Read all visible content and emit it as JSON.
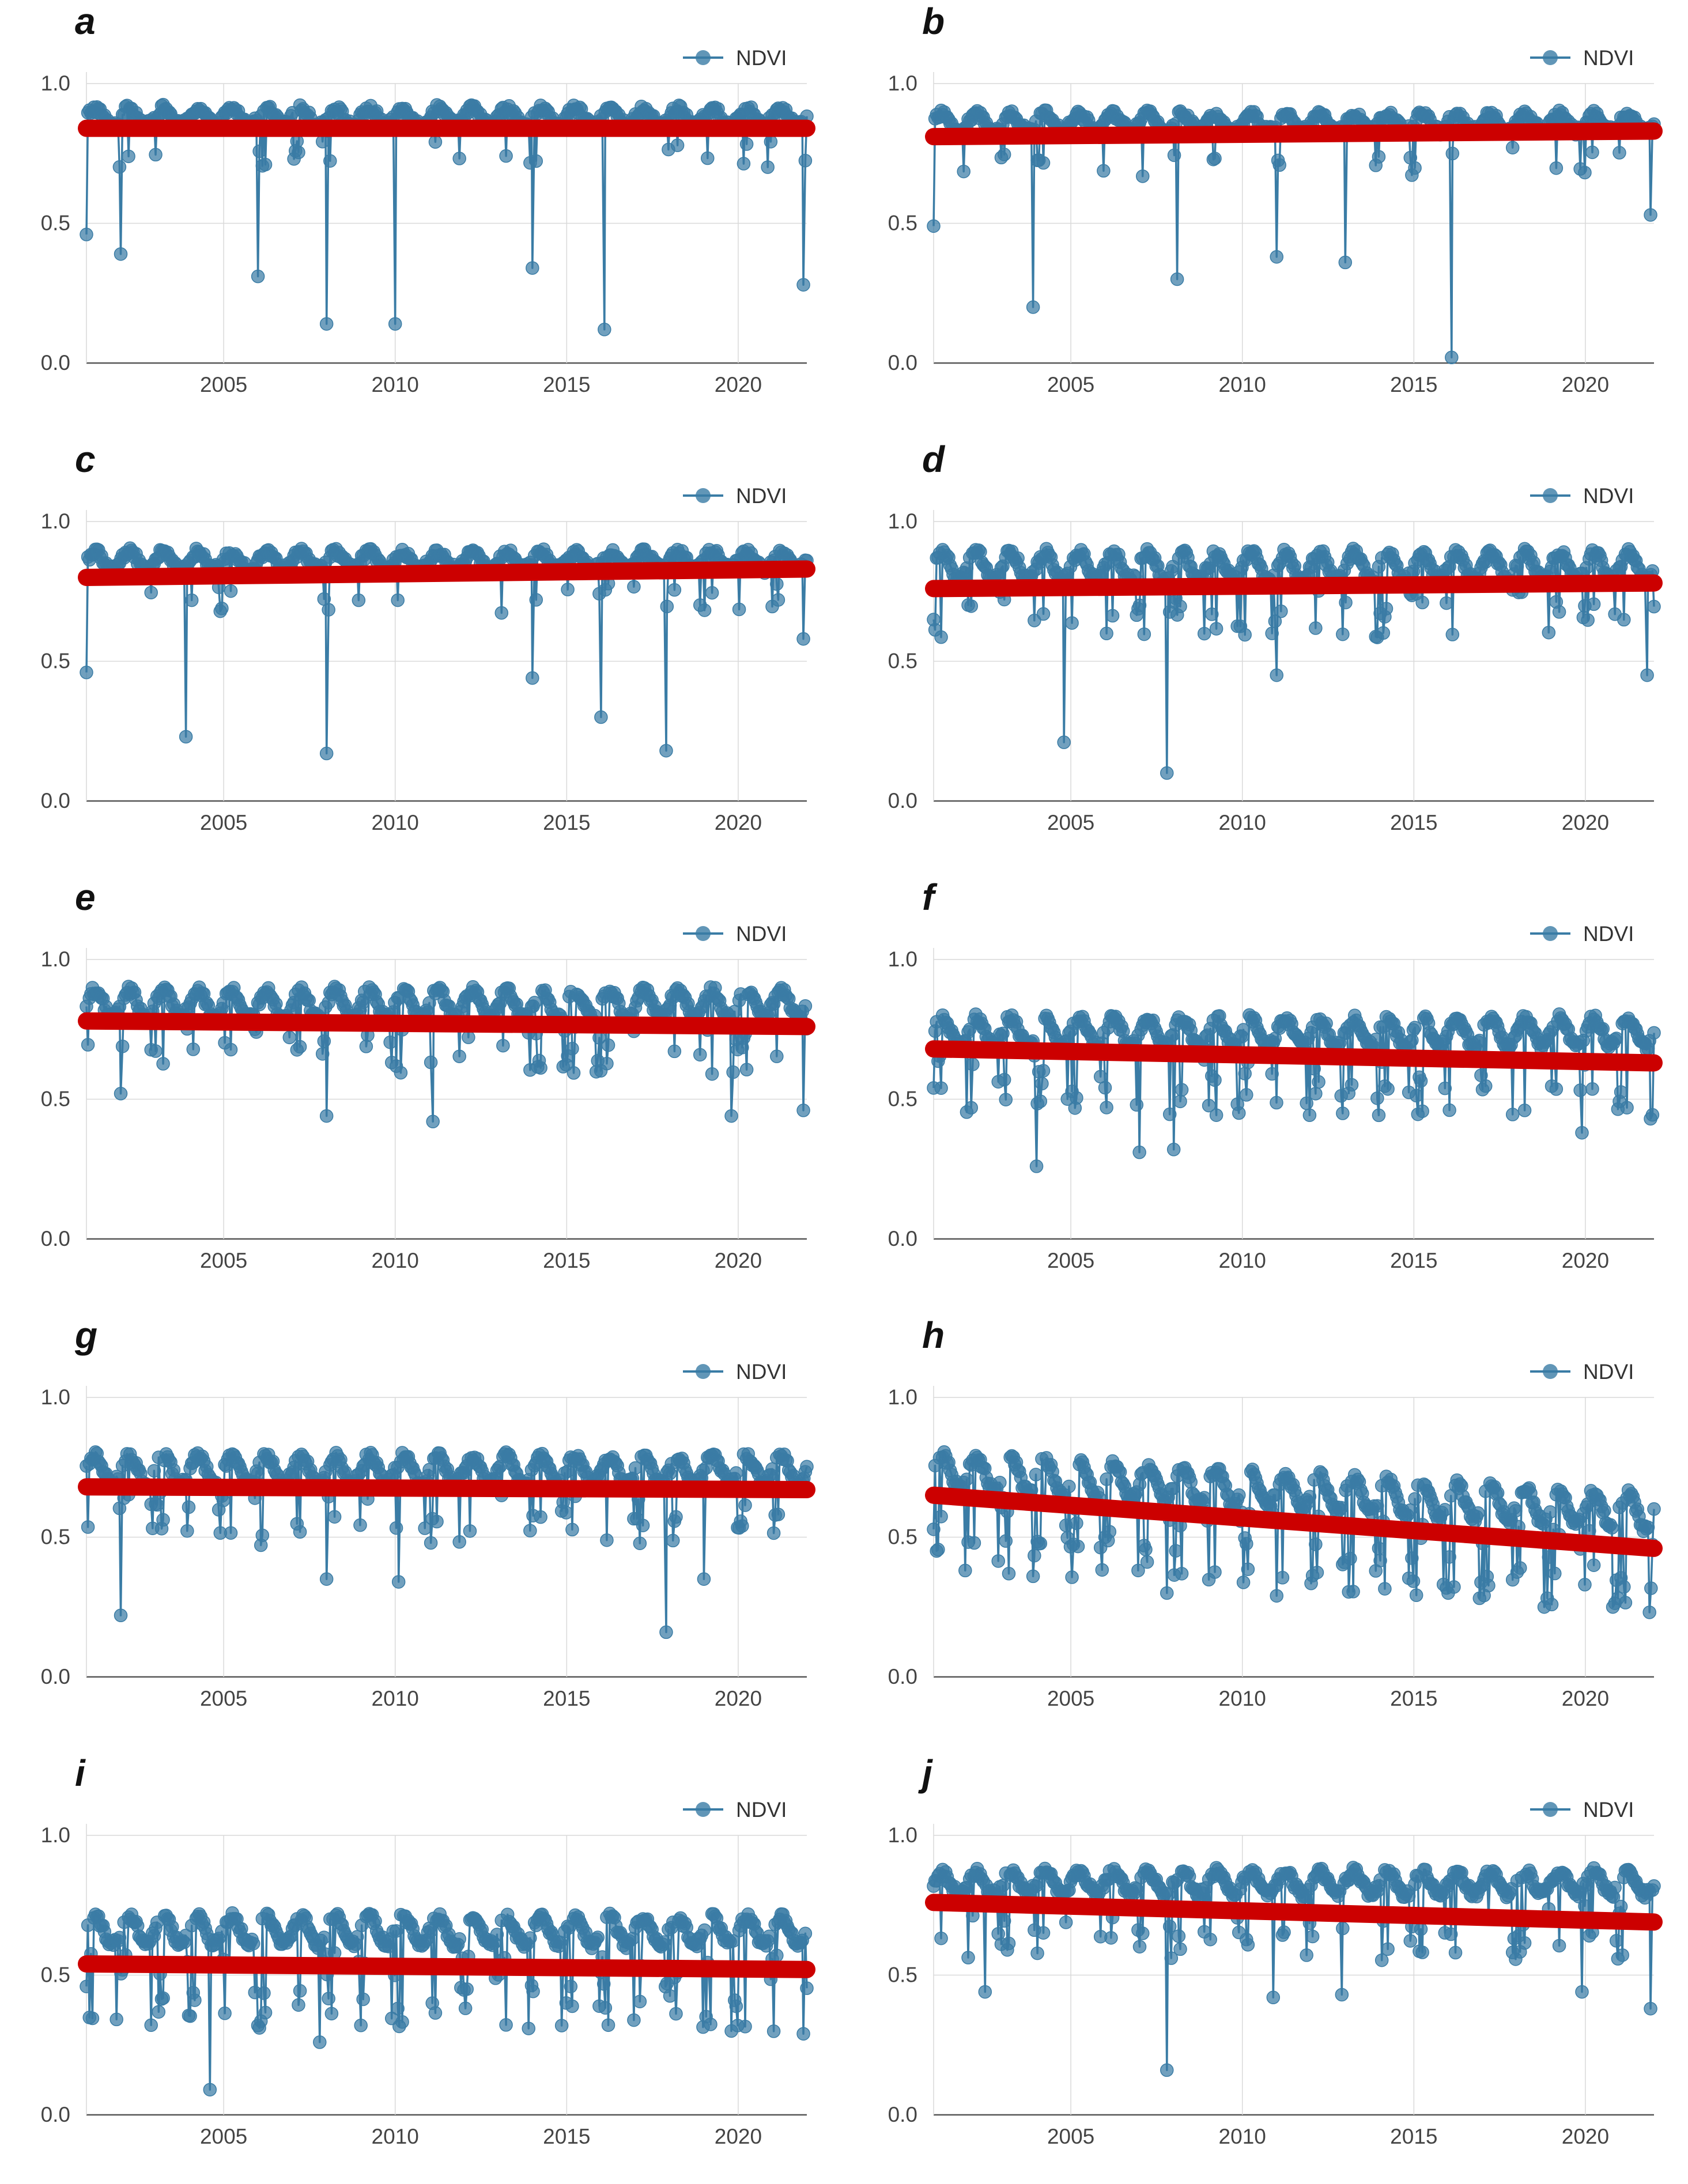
{
  "figure": {
    "legend_label": "NDVI",
    "colors": {
      "series": "#3a7ca5",
      "trend": "#cc0000",
      "grid": "#d9d9d9",
      "axis": "#555555"
    }
  },
  "chart_data": [
    {
      "panel": "a",
      "type": "line",
      "legend": "NDVI",
      "title": "",
      "xlabel": "",
      "ylabel": "",
      "xlim": [
        2001,
        2022
      ],
      "ylim": [
        0,
        1
      ],
      "x_ticks": [
        2005,
        2010,
        2015,
        2020
      ],
      "y_ticks": [
        "0.0",
        "0.5",
        "1.0"
      ],
      "series_profile": {
        "base": 0.88,
        "amplitude": 0.03,
        "dip_rate": 0.12,
        "min_spikes": [
          [
            2001.0,
            0.46
          ],
          [
            2002.0,
            0.39
          ],
          [
            2006.0,
            0.31
          ],
          [
            2008.0,
            0.14
          ],
          [
            2010.0,
            0.14
          ],
          [
            2014.0,
            0.34
          ],
          [
            2016.1,
            0.12
          ],
          [
            2021.9,
            0.28
          ]
        ]
      },
      "trend": {
        "x": [
          2001,
          2022
        ],
        "y": [
          0.84,
          0.84
        ]
      }
    },
    {
      "panel": "b",
      "type": "line",
      "legend": "NDVI",
      "title": "",
      "xlabel": "",
      "ylabel": "",
      "xlim": [
        2001,
        2022
      ],
      "ylim": [
        0,
        1
      ],
      "x_ticks": [
        2005,
        2010,
        2015,
        2020
      ],
      "y_ticks": [
        "0.0",
        "0.5",
        "1.0"
      ],
      "series_profile": {
        "base": 0.86,
        "amplitude": 0.03,
        "dip_rate": 0.15,
        "min_spikes": [
          [
            2001.0,
            0.49
          ],
          [
            2003.9,
            0.2
          ],
          [
            2008.1,
            0.3
          ],
          [
            2011.0,
            0.38
          ],
          [
            2013.0,
            0.36
          ],
          [
            2016.1,
            0.02
          ],
          [
            2021.9,
            0.53
          ]
        ]
      },
      "trend": {
        "x": [
          2001,
          2022
        ],
        "y": [
          0.81,
          0.83
        ]
      }
    },
    {
      "panel": "c",
      "type": "line",
      "legend": "NDVI",
      "title": "",
      "xlabel": "",
      "ylabel": "",
      "xlim": [
        2001,
        2022
      ],
      "ylim": [
        0,
        1
      ],
      "x_ticks": [
        2005,
        2010,
        2015,
        2020
      ],
      "y_ticks": [
        "0.0",
        "0.5",
        "1.0"
      ],
      "series_profile": {
        "base": 0.86,
        "amplitude": 0.03,
        "dip_rate": 0.14,
        "min_spikes": [
          [
            2001.0,
            0.46
          ],
          [
            2003.9,
            0.23
          ],
          [
            2008.0,
            0.17
          ],
          [
            2014.0,
            0.44
          ],
          [
            2016.0,
            0.3
          ],
          [
            2017.9,
            0.18
          ],
          [
            2021.9,
            0.58
          ]
        ]
      },
      "trend": {
        "x": [
          2001,
          2022
        ],
        "y": [
          0.8,
          0.83
        ]
      }
    },
    {
      "panel": "d",
      "type": "line",
      "legend": "NDVI",
      "title": "",
      "xlabel": "",
      "ylabel": "",
      "xlim": [
        2001,
        2022
      ],
      "ylim": [
        0,
        1
      ],
      "x_ticks": [
        2005,
        2010,
        2015,
        2020
      ],
      "y_ticks": [
        "0.0",
        "0.5",
        "1.0"
      ],
      "series_profile": {
        "base": 0.84,
        "amplitude": 0.05,
        "dip_rate": 0.3,
        "min_spikes": [
          [
            2004.8,
            0.21
          ],
          [
            2007.8,
            0.1
          ],
          [
            2011.0,
            0.45
          ],
          [
            2021.8,
            0.45
          ]
        ]
      },
      "trend": {
        "x": [
          2001,
          2022
        ],
        "y": [
          0.76,
          0.78
        ]
      }
    },
    {
      "panel": "e",
      "type": "line",
      "legend": "NDVI",
      "title": "",
      "xlabel": "",
      "ylabel": "",
      "xlim": [
        2001,
        2022
      ],
      "ylim": [
        0,
        1
      ],
      "x_ticks": [
        2005,
        2010,
        2015,
        2020
      ],
      "y_ticks": [
        "0.0",
        "0.5",
        "1.0"
      ],
      "series_profile": {
        "base": 0.84,
        "amplitude": 0.05,
        "dip_rate": 0.32,
        "min_spikes": [
          [
            2002.0,
            0.52
          ],
          [
            2008.0,
            0.44
          ],
          [
            2011.1,
            0.42
          ],
          [
            2019.8,
            0.44
          ],
          [
            2021.9,
            0.46
          ]
        ]
      },
      "trend": {
        "x": [
          2001,
          2022
        ],
        "y": [
          0.78,
          0.76
        ]
      }
    },
    {
      "panel": "f",
      "type": "line",
      "legend": "NDVI",
      "title": "",
      "xlabel": "",
      "ylabel": "",
      "xlim": [
        2001,
        2022
      ],
      "ylim": [
        0,
        1
      ],
      "x_ticks": [
        2005,
        2010,
        2015,
        2020
      ],
      "y_ticks": [
        "0.0",
        "0.5",
        "1.0"
      ],
      "series_profile": {
        "base": 0.74,
        "amplitude": 0.05,
        "dip_rate": 0.4,
        "min_spikes": [
          [
            2004.0,
            0.26
          ],
          [
            2007.0,
            0.31
          ],
          [
            2008.0,
            0.32
          ],
          [
            2019.9,
            0.38
          ],
          [
            2021.9,
            0.43
          ]
        ]
      },
      "trend": {
        "x": [
          2001,
          2022
        ],
        "y": [
          0.68,
          0.63
        ]
      }
    },
    {
      "panel": "g",
      "type": "line",
      "legend": "NDVI",
      "title": "",
      "xlabel": "",
      "ylabel": "",
      "xlim": [
        2001,
        2022
      ],
      "ylim": [
        0,
        1
      ],
      "x_ticks": [
        2005,
        2010,
        2015,
        2020
      ],
      "y_ticks": [
        "0.0",
        "0.5",
        "1.0"
      ],
      "series_profile": {
        "base": 0.74,
        "amplitude": 0.05,
        "dip_rate": 0.35,
        "min_spikes": [
          [
            2002.0,
            0.22
          ],
          [
            2008.0,
            0.35
          ],
          [
            2010.1,
            0.34
          ],
          [
            2017.9,
            0.16
          ],
          [
            2019.0,
            0.35
          ]
        ]
      },
      "trend": {
        "x": [
          2001,
          2022
        ],
        "y": [
          0.68,
          0.67
        ]
      }
    },
    {
      "panel": "h",
      "type": "line",
      "legend": "NDVI",
      "title": "",
      "xlabel": "",
      "ylabel": "",
      "xlim": [
        2001,
        2022
      ],
      "ylim": [
        0,
        1
      ],
      "x_ticks": [
        2005,
        2010,
        2015,
        2020
      ],
      "y_ticks": [
        "0.0",
        "0.5",
        "1.0"
      ],
      "series_profile": {
        "base": 0.74,
        "amplitude": 0.06,
        "dip_rate": 0.55,
        "decline": 0.15,
        "min_spikes": [
          [
            2003.9,
            0.36
          ],
          [
            2007.8,
            0.3
          ],
          [
            2011.0,
            0.29
          ],
          [
            2016.0,
            0.3
          ],
          [
            2018.8,
            0.25
          ],
          [
            2020.8,
            0.25
          ]
        ]
      },
      "trend": {
        "x": [
          2001,
          2022
        ],
        "y": [
          0.65,
          0.46
        ]
      }
    },
    {
      "panel": "i",
      "type": "line",
      "legend": "NDVI",
      "title": "",
      "xlabel": "",
      "ylabel": "",
      "xlim": [
        2001,
        2022
      ],
      "ylim": [
        0,
        1
      ],
      "x_ticks": [
        2005,
        2010,
        2015,
        2020
      ],
      "y_ticks": [
        "0.0",
        "0.5",
        "1.0"
      ],
      "series_profile": {
        "base": 0.66,
        "amplitude": 0.05,
        "dip_rate": 0.55,
        "min_spikes": [
          [
            2004.6,
            0.09
          ],
          [
            2007.8,
            0.26
          ],
          [
            2009.0,
            0.32
          ],
          [
            2019.8,
            0.3
          ],
          [
            2021.9,
            0.29
          ]
        ]
      },
      "trend": {
        "x": [
          2001,
          2022
        ],
        "y": [
          0.54,
          0.52
        ]
      }
    },
    {
      "panel": "j",
      "type": "line",
      "legend": "NDVI",
      "title": "",
      "xlabel": "",
      "ylabel": "",
      "xlim": [
        2001,
        2022
      ],
      "ylim": [
        0,
        1
      ],
      "x_ticks": [
        2005,
        2010,
        2015,
        2020
      ],
      "y_ticks": [
        "0.0",
        "0.5",
        "1.0"
      ],
      "series_profile": {
        "base": 0.83,
        "amplitude": 0.04,
        "dip_rate": 0.35,
        "min_spikes": [
          [
            2002.5,
            0.44
          ],
          [
            2007.8,
            0.16
          ],
          [
            2010.9,
            0.42
          ],
          [
            2012.9,
            0.43
          ],
          [
            2019.9,
            0.44
          ],
          [
            2021.9,
            0.38
          ]
        ]
      },
      "trend": {
        "x": [
          2001,
          2022
        ],
        "y": [
          0.76,
          0.69
        ]
      }
    }
  ]
}
